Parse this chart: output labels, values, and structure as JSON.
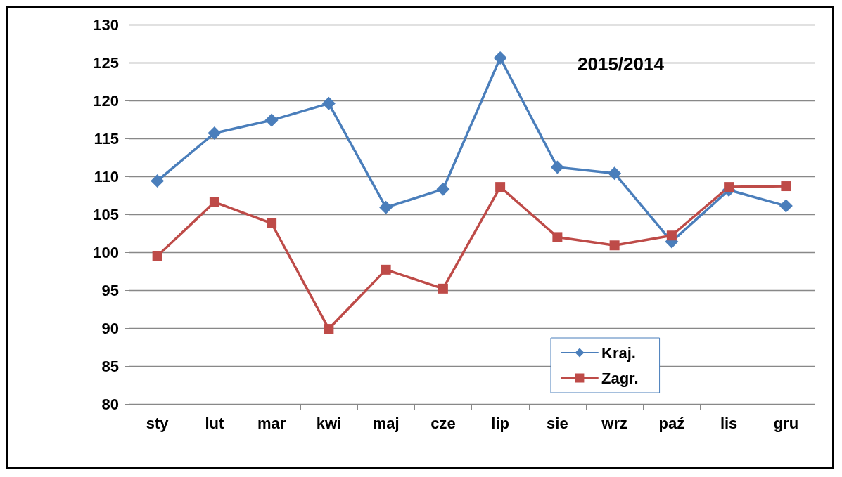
{
  "chart_data": {
    "type": "line",
    "title": "2015/2014",
    "categories": [
      "sty",
      "lut",
      "mar",
      "kwi",
      "maj",
      "cze",
      "lip",
      "sie",
      "wrz",
      "paź",
      "lis",
      "gru"
    ],
    "series": [
      {
        "name": "Kraj.",
        "color": "#4a7ebb",
        "marker": "diamond",
        "values": [
          109.4,
          115.7,
          117.4,
          119.6,
          105.9,
          108.3,
          125.6,
          111.2,
          110.4,
          101.4,
          108.2,
          106.1
        ]
      },
      {
        "name": "Zagr.",
        "color": "#be4b48",
        "marker": "square",
        "values": [
          99.5,
          106.6,
          103.8,
          89.9,
          97.7,
          95.2,
          108.6,
          102.0,
          100.9,
          102.2,
          108.6,
          108.7
        ]
      }
    ],
    "ylim": [
      80,
      130
    ],
    "yticks": [
      80,
      85,
      90,
      95,
      100,
      105,
      110,
      115,
      120,
      125,
      130
    ],
    "grid": "y",
    "legend": "bottom right",
    "line_style": "solid"
  }
}
